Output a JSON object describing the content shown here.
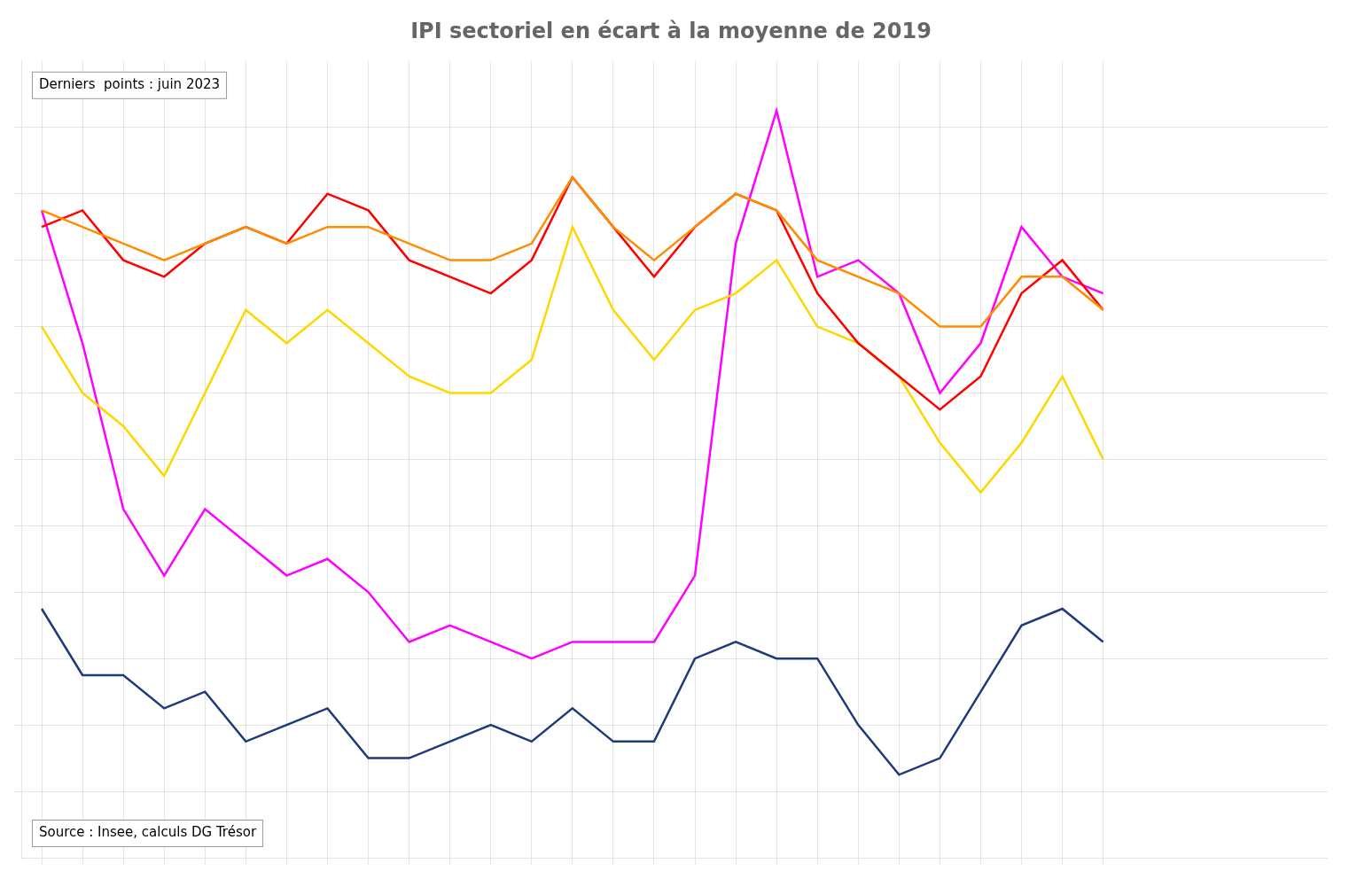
{
  "chart_data": {
    "type": "line",
    "title": "IPI sectoriel en écart à la moyenne de 2019",
    "annotations": [
      "Derniers  points : juin 2023",
      "Source : Insee, calculs DG Trésor"
    ],
    "x": [
      0,
      1,
      2,
      3,
      4,
      5,
      6,
      7,
      8,
      9,
      10,
      11,
      12,
      13,
      14,
      15,
      16,
      17,
      18,
      19,
      20,
      21,
      22,
      23,
      24,
      25,
      26
    ],
    "series": [
      {
        "color": "#FF8C00",
        "values": [
          7.5,
          7.0,
          6.5,
          6.0,
          6.5,
          7.0,
          6.5,
          7.0,
          7.0,
          6.5,
          6.0,
          6.0,
          6.5,
          8.5,
          7.0,
          6.0,
          7.0,
          8.0,
          7.5,
          6.0,
          5.5,
          5.0,
          4.0,
          4.0,
          5.5,
          5.5,
          4.5
        ]
      },
      {
        "color": "#FF0000",
        "values": [
          7.0,
          7.5,
          6.0,
          5.5,
          6.5,
          7.0,
          6.5,
          8.0,
          7.5,
          6.0,
          5.5,
          5.0,
          6.0,
          8.5,
          7.0,
          5.5,
          7.0,
          8.0,
          7.5,
          5.0,
          3.5,
          2.5,
          1.5,
          2.5,
          5.0,
          6.0,
          4.5
        ]
      },
      {
        "color": "#FFD700",
        "values": [
          4.0,
          2.0,
          1.0,
          -0.5,
          2.0,
          4.5,
          3.5,
          4.5,
          3.5,
          2.5,
          2.0,
          2.0,
          3.0,
          7.0,
          4.5,
          3.0,
          4.5,
          5.0,
          6.0,
          4.0,
          3.5,
          2.5,
          0.5,
          -1.0,
          0.5,
          2.5,
          0.0
        ]
      },
      {
        "color": "#FF00FF",
        "values": [
          7.5,
          3.5,
          -1.5,
          -3.5,
          -1.5,
          -2.5,
          -3.5,
          -3.0,
          -4.0,
          -5.5,
          -5.0,
          -5.5,
          -6.0,
          -5.5,
          -5.5,
          -5.5,
          -3.5,
          6.5,
          10.5,
          5.5,
          6.0,
          5.0,
          2.0,
          3.5,
          7.0,
          5.5,
          5.0
        ]
      },
      {
        "color": "#1F3A7A",
        "values": [
          -4.5,
          -6.5,
          -6.5,
          -7.5,
          -7.0,
          -8.5,
          -8.0,
          -7.5,
          -9.0,
          -9.0,
          -8.5,
          -8.0,
          -8.5,
          -7.5,
          -8.5,
          -8.5,
          -6.0,
          -5.5,
          -6.0,
          -6.0,
          -8.0,
          -9.5,
          -9.0,
          -7.0,
          -5.0,
          -4.5,
          -5.5
        ]
      }
    ],
    "xlim": [
      -0.5,
      31.5
    ],
    "xticks": [
      0,
      1,
      2,
      3,
      4,
      5,
      6,
      7,
      8,
      9,
      10,
      11,
      12,
      13,
      14,
      15,
      16,
      17,
      18,
      19,
      20,
      21,
      22,
      23,
      24,
      25,
      26
    ],
    "ylim": [
      -12,
      12
    ],
    "yticks": [
      -10,
      -8,
      -6,
      -4,
      -2,
      0,
      2,
      4,
      6,
      8,
      10
    ],
    "grid": true,
    "tick_labels": false
  }
}
